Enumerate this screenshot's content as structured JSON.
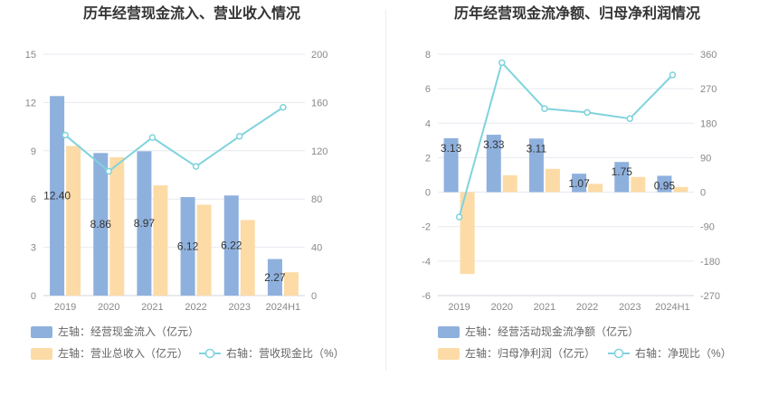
{
  "chart_data": [
    {
      "type": "bar",
      "title": "历年经营现金流入、营业收入情况",
      "categories": [
        "2019",
        "2020",
        "2021",
        "2022",
        "2023",
        "2024H1"
      ],
      "left_axis": {
        "ticks": [
          0,
          3,
          6,
          9,
          12,
          15
        ],
        "ylim": [
          0,
          15
        ]
      },
      "right_axis": {
        "ticks": [
          0,
          40,
          80,
          120,
          160,
          200
        ],
        "ylim": [
          0,
          200
        ]
      },
      "series": [
        {
          "name": "左轴：经营现金流入（亿元）",
          "axis": "left",
          "kind": "bar",
          "color": "#8eb0dd",
          "values": [
            12.4,
            8.86,
            8.97,
            6.12,
            6.22,
            2.27
          ],
          "labels": [
            "12.40",
            "8.86",
            "8.97",
            "6.12",
            "6.22",
            "2.27"
          ]
        },
        {
          "name": "左轴：营业总收入（亿元）",
          "axis": "left",
          "kind": "bar",
          "color": "#fddba6",
          "values": [
            9.3,
            8.6,
            6.85,
            5.65,
            4.7,
            1.45
          ]
        },
        {
          "name": "右轴：营收现金比（%）",
          "axis": "right",
          "kind": "line",
          "color": "#7fd3dd",
          "values": [
            133,
            103,
            131,
            107,
            132,
            156
          ]
        }
      ],
      "legend_position": "bottom",
      "grid": true
    },
    {
      "type": "bar",
      "title": "历年经营现金流净额、归母净利润情况",
      "categories": [
        "2019",
        "2020",
        "2021",
        "2022",
        "2023",
        "2024H1"
      ],
      "left_axis": {
        "ticks": [
          -6,
          -4,
          -2,
          0,
          2,
          4,
          6,
          8
        ],
        "ylim": [
          -6,
          8
        ]
      },
      "right_axis": {
        "ticks": [
          -270,
          -180,
          -90,
          0,
          90,
          180,
          270,
          360
        ],
        "ylim": [
          -270,
          360
        ]
      },
      "series": [
        {
          "name": "左轴：经营活动现金流净额（亿元）",
          "axis": "left",
          "kind": "bar",
          "color": "#8eb0dd",
          "values": [
            3.13,
            3.33,
            3.11,
            1.07,
            1.75,
            0.95
          ],
          "labels": [
            "3.13",
            "3.33",
            "3.11",
            "1.07",
            "1.75",
            "0.95"
          ]
        },
        {
          "name": "左轴：归母净利润（亿元）",
          "axis": "left",
          "kind": "bar",
          "color": "#fddba6",
          "values": [
            -4.75,
            0.98,
            1.35,
            0.48,
            0.88,
            0.3
          ]
        },
        {
          "name": "右轴：净现比（%）",
          "axis": "right",
          "kind": "line",
          "color": "#7fd3dd",
          "values": [
            -65,
            338,
            218,
            208,
            192,
            306
          ]
        }
      ],
      "legend_position": "bottom",
      "grid": true
    }
  ]
}
